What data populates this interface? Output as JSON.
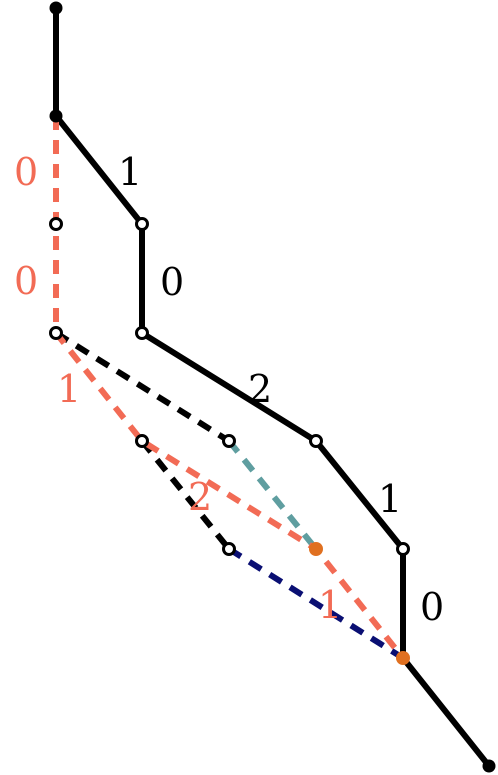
{
  "colors": {
    "solid_path": "#000000",
    "salmon_path": "#f26b55",
    "black_dashed": "#000000",
    "teal_dashed": "#5f9ea0",
    "navy_dashed": "#0a0f73",
    "orange_node": "#e07020",
    "open_node_fill": "#ffffff",
    "solid_node_fill": "#000000"
  },
  "labels": {
    "solid": {
      "seg_b_c": "1",
      "seg_c_d": "0",
      "seg_d_e": "2",
      "seg_e_f": "1",
      "seg_f_g": "0"
    },
    "salmon": {
      "seg_b_h": "0",
      "seg_h_i": "0",
      "seg_i_j": "1",
      "seg_j_o1": "2",
      "seg_o1_g": "1"
    }
  }
}
